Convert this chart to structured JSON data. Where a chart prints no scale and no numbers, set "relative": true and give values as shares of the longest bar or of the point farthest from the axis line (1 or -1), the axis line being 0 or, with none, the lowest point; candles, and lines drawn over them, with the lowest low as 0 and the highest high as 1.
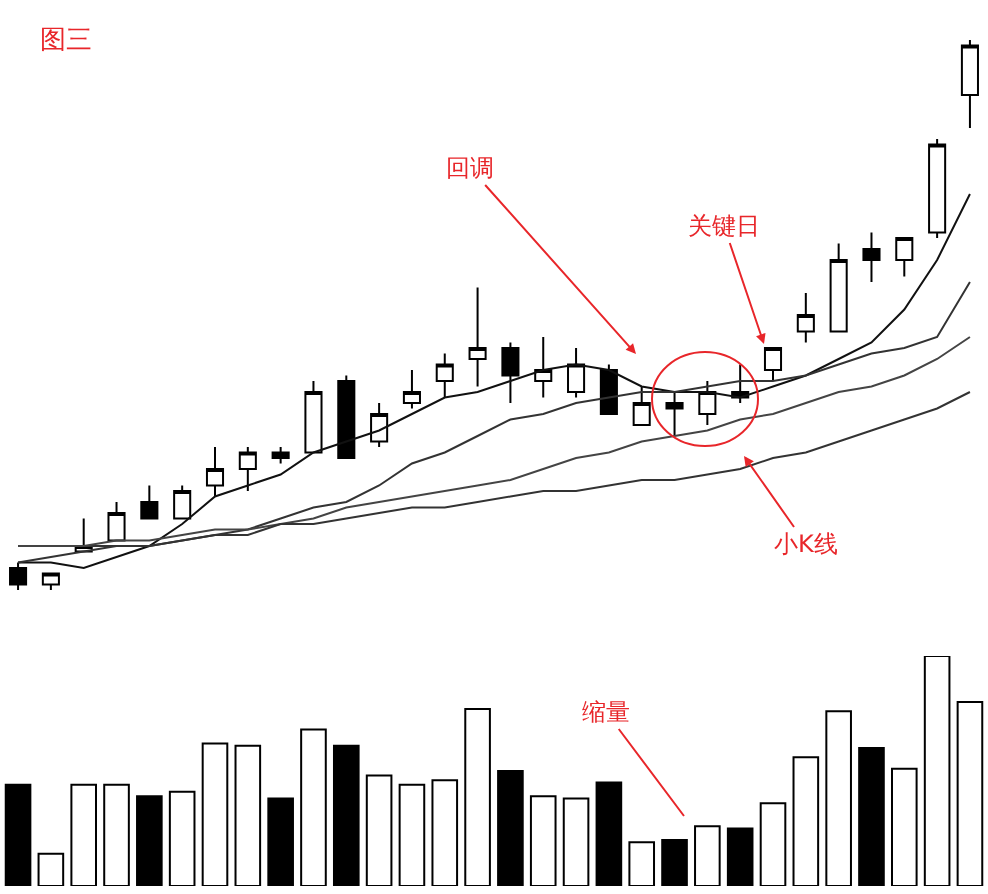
{
  "chart_data": [
    {
      "type": "candlestick",
      "title": "图三",
      "relative": true,
      "categories": [
        null,
        null,
        null,
        null,
        null,
        null,
        null,
        null,
        null,
        null,
        null,
        null,
        null,
        null,
        null,
        null,
        null,
        null,
        null,
        null,
        null,
        null,
        null,
        null,
        null,
        null,
        null,
        null,
        null,
        null
      ],
      "ohlc": [
        [
          0.04,
          0.05,
          0,
          0.01
        ],
        [
          0.01,
          0.03,
          0,
          0.03
        ],
        [
          0.07,
          0.13,
          0.07,
          0.08
        ],
        [
          0.09,
          0.16,
          0.09,
          0.14
        ],
        [
          0.16,
          0.19,
          0.13,
          0.13
        ],
        [
          0.13,
          0.19,
          0.13,
          0.18
        ],
        [
          0.19,
          0.26,
          0.17,
          0.22
        ],
        [
          0.22,
          0.26,
          0.18,
          0.25
        ],
        [
          0.25,
          0.26,
          0.23,
          0.24
        ],
        [
          0.25,
          0.38,
          0.25,
          0.36
        ],
        [
          0.38,
          0.39,
          0.24,
          0.24
        ],
        [
          0.27,
          0.34,
          0.26,
          0.32
        ],
        [
          0.34,
          0.4,
          0.33,
          0.36
        ],
        [
          0.38,
          0.43,
          0.35,
          0.41
        ],
        [
          0.42,
          0.55,
          0.37,
          0.44
        ],
        [
          0.44,
          0.45,
          0.34,
          0.39
        ],
        [
          0.38,
          0.46,
          0.35,
          0.4
        ],
        [
          0.36,
          0.44,
          0.35,
          0.41
        ],
        [
          0.4,
          0.41,
          0.32,
          0.32
        ],
        [
          0.3,
          0.37,
          0.3,
          0.34
        ],
        [
          0.34,
          0.36,
          0.28,
          0.33
        ],
        [
          0.32,
          0.38,
          0.3,
          0.36
        ],
        [
          0.36,
          0.41,
          0.34,
          0.35
        ],
        [
          0.4,
          0.44,
          0.38,
          0.44
        ],
        [
          0.47,
          0.54,
          0.45,
          0.5
        ],
        [
          0.47,
          0.63,
          0.47,
          0.6
        ],
        [
          0.62,
          0.65,
          0.56,
          0.6
        ],
        [
          0.6,
          0.64,
          0.57,
          0.64
        ],
        [
          0.65,
          0.82,
          0.64,
          0.81
        ],
        [
          0.9,
          1,
          0.84,
          0.99
        ]
      ],
      "series": [
        {
          "type": "line",
          "color": "#111111",
          "values": [
            0.05,
            0.05,
            0.04,
            0.06,
            0.08,
            0.12,
            0.17,
            0.19,
            0.21,
            0.25,
            0.27,
            0.29,
            0.32,
            0.35,
            0.36,
            0.38,
            0.4,
            0.41,
            0.4,
            0.37,
            0.36,
            0.36,
            0.35,
            0.37,
            0.39,
            0.42,
            0.45,
            0.51,
            0.6,
            0.72
          ]
        },
        {
          "type": "line",
          "color": "#333333",
          "values": [
            0.08,
            0.08,
            0.08,
            0.08,
            0.08,
            0.09,
            0.1,
            0.11,
            0.13,
            0.15,
            0.16,
            0.19,
            0.23,
            0.25,
            0.28,
            0.31,
            0.32,
            0.34,
            0.35,
            0.36,
            0.36,
            0.37,
            0.38,
            0.38,
            0.39,
            0.41,
            0.43,
            0.44,
            0.46,
            0.56
          ]
        },
        {
          "type": "line",
          "color": "#444444",
          "values": [
            0.08,
            0.08,
            0.08,
            0.09,
            0.09,
            0.1,
            0.11,
            0.11,
            0.12,
            0.13,
            0.15,
            0.16,
            0.17,
            0.18,
            0.19,
            0.2,
            0.22,
            0.24,
            0.25,
            0.27,
            0.28,
            0.29,
            0.31,
            0.32,
            0.34,
            0.36,
            0.37,
            0.39,
            0.42,
            0.46
          ]
        },
        {
          "type": "line",
          "color": "#333333",
          "values": [
            0.05,
            0.06,
            0.07,
            0.08,
            0.08,
            0.09,
            0.1,
            0.1,
            0.12,
            0.12,
            0.13,
            0.14,
            0.15,
            0.15,
            0.16,
            0.17,
            0.18,
            0.18,
            0.19,
            0.2,
            0.2,
            0.21,
            0.22,
            0.24,
            0.25,
            0.27,
            0.29,
            0.31,
            0.33,
            0.36
          ]
        }
      ],
      "annotations": [
        "回调",
        "关键日",
        "小K线"
      ]
    },
    {
      "type": "bar",
      "relative": true,
      "categories": [
        null,
        null,
        null,
        null,
        null,
        null,
        null,
        null,
        null,
        null,
        null,
        null,
        null,
        null,
        null,
        null,
        null,
        null,
        null,
        null,
        null,
        null,
        null,
        null,
        null,
        null,
        null,
        null,
        null,
        null
      ],
      "values": [
        0.44,
        0.14,
        0.44,
        0.44,
        0.39,
        0.41,
        0.62,
        0.61,
        0.38,
        0.68,
        0.61,
        0.48,
        0.44,
        0.46,
        0.77,
        0.5,
        0.39,
        0.38,
        0.45,
        0.19,
        0.2,
        0.26,
        0.25,
        0.36,
        0.56,
        0.76,
        0.6,
        0.51,
        1,
        0.8
      ],
      "colors": [
        "#000000",
        "#ffffff",
        "#ffffff",
        "#ffffff",
        "#000000",
        "#ffffff",
        "#ffffff",
        "#ffffff",
        "#000000",
        "#ffffff",
        "#000000",
        "#ffffff",
        "#ffffff",
        "#ffffff",
        "#ffffff",
        "#000000",
        "#ffffff",
        "#ffffff",
        "#000000",
        "#ffffff",
        "#000000",
        "#ffffff",
        "#000000",
        "#ffffff",
        "#ffffff",
        "#ffffff",
        "#000000",
        "#ffffff",
        "#ffffff",
        "#ffffff"
      ],
      "annotations": [
        "缩量"
      ]
    }
  ]
}
